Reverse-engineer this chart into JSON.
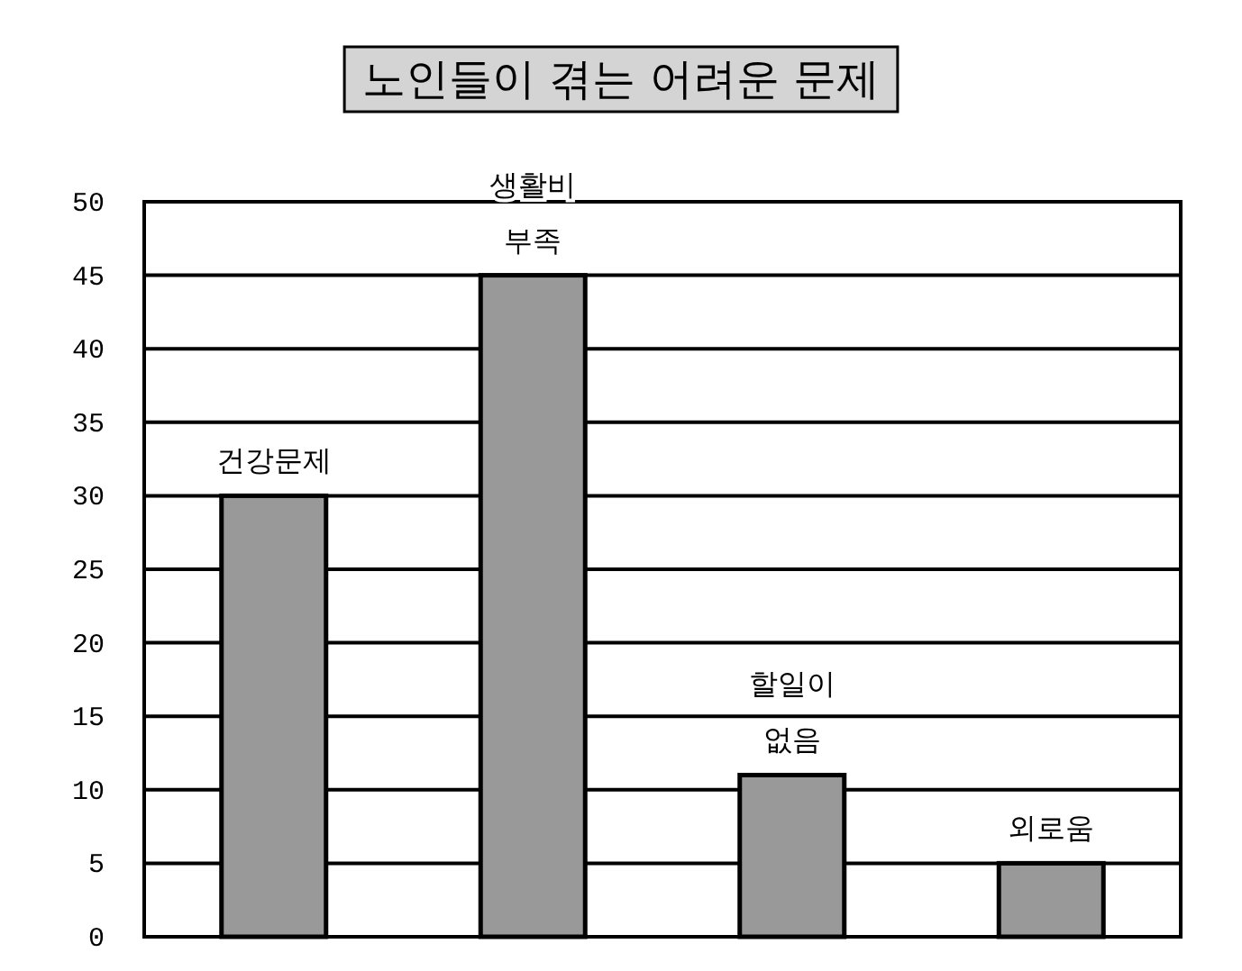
{
  "chart_data": {
    "type": "bar",
    "title": "노인들이 겪는 어려운 문제",
    "categories": [
      "건강문제",
      "생활비 부족",
      "할일이 없음",
      "외로움"
    ],
    "values": [
      30,
      45,
      11,
      5
    ],
    "color": "#999999",
    "ylim": [
      0,
      50
    ],
    "yticks": [
      0,
      5,
      10,
      15,
      20,
      25,
      30,
      35,
      40,
      45,
      50
    ],
    "grid": "y"
  }
}
